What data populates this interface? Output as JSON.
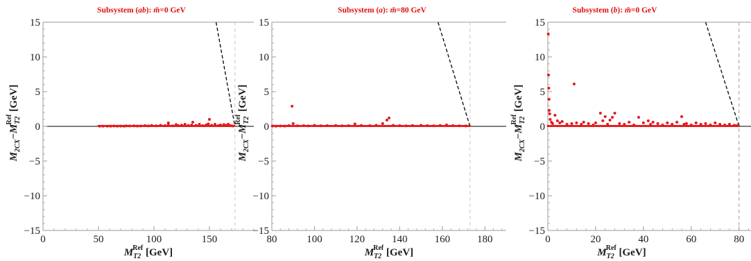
{
  "chart_data": [
    {
      "type": "scatter",
      "title": "Subsystem (ab): m̃=0 GeV",
      "title_parts": [
        "Subsystem (",
        "ab",
        "): ",
        "m̃",
        "=0 GeV"
      ],
      "xlabel_parts": [
        "M",
        "T2",
        "Ref",
        "[GeV]"
      ],
      "ylabel_parts": [
        "M",
        "2CX",
        "−",
        "M",
        "T2",
        "Ref",
        "[GeV]"
      ],
      "xlim": [
        0,
        190
      ],
      "ylim": [
        -15,
        15
      ],
      "xticks": [
        0,
        50,
        100,
        150
      ],
      "yticks": [
        -15,
        -10,
        -5,
        0,
        5,
        10,
        15
      ],
      "ytick_labels": [
        "−15",
        "−10",
        "−5",
        "0",
        "5",
        "10",
        "15"
      ],
      "endpoint": 173,
      "diagonal": [
        [
          156,
          15
        ],
        [
          173,
          0
        ]
      ],
      "series": [
        {
          "color": "#e31a1c",
          "x": [
            51,
            54,
            58,
            61,
            64,
            67,
            70,
            73,
            75,
            78,
            82,
            85,
            88,
            92,
            95,
            98,
            102,
            106,
            110,
            113,
            113,
            117,
            120,
            122,
            125,
            128,
            131,
            134,
            135,
            138,
            141,
            144,
            147,
            149,
            150,
            152,
            155,
            158,
            160,
            163,
            165,
            167,
            169,
            171
          ],
          "y": [
            0.02,
            0.02,
            0.03,
            0.02,
            0.05,
            0.03,
            0.04,
            0.02,
            0.06,
            0.05,
            0.08,
            0.04,
            0.05,
            0.1,
            0.06,
            0.12,
            0.07,
            0.15,
            0.1,
            0.5,
            0.2,
            0.08,
            0.25,
            0.1,
            0.18,
            0.3,
            0.12,
            0.2,
            0.6,
            0.15,
            0.3,
            0.1,
            0.2,
            0.35,
            1.0,
            0.15,
            0.3,
            0.1,
            0.2,
            0.25,
            0.15,
            0.3,
            0.1,
            0.05
          ]
        }
      ]
    },
    {
      "type": "scatter",
      "title": "Subsystem (a): m̃=80 GeV",
      "title_parts": [
        "Subsystem (",
        "a",
        "): ",
        "m̃",
        "=80 GeV"
      ],
      "xlabel_parts": [
        "M",
        "T2",
        "Ref",
        "[GeV]"
      ],
      "ylabel_parts": [
        "M",
        "2CX",
        "−",
        "M",
        "T2",
        "Ref",
        "[GeV]"
      ],
      "xlim": [
        80,
        190
      ],
      "ylim": [
        -15,
        15
      ],
      "xticks": [
        80,
        100,
        120,
        140,
        160,
        180
      ],
      "yticks": [
        -15,
        -10,
        -5,
        0,
        5,
        10,
        15
      ],
      "ytick_labels": [
        "−15",
        "−10",
        "−5",
        "0",
        "5",
        "10",
        "15"
      ],
      "endpoint": 173,
      "diagonal": [
        [
          158,
          15
        ],
        [
          173,
          0
        ]
      ],
      "series": [
        {
          "color": "#e31a1c",
          "x": [
            80.5,
            82,
            84,
            86,
            88,
            89.5,
            90,
            92,
            95,
            97,
            100,
            103,
            106,
            110,
            113,
            116,
            119,
            122,
            126,
            129,
            132,
            134,
            135,
            137,
            140,
            143,
            146,
            150,
            153,
            156,
            159,
            162,
            165,
            168,
            171
          ],
          "y": [
            0.05,
            0.03,
            0.05,
            0.04,
            0.1,
            2.9,
            0.4,
            0.08,
            0.1,
            0.06,
            0.15,
            0.08,
            0.1,
            0.12,
            0.08,
            0.1,
            0.35,
            0.12,
            0.1,
            0.15,
            0.4,
            0.9,
            1.2,
            0.15,
            0.1,
            0.08,
            0.12,
            0.15,
            0.1,
            0.08,
            0.12,
            0.2,
            0.1,
            0.08,
            0.06
          ]
        }
      ]
    },
    {
      "type": "scatter",
      "title": "Subsystem (b): m̃=0 GeV",
      "title_parts": [
        "Subsystem (",
        "b",
        "): ",
        "m̃",
        "=0 GeV"
      ],
      "xlabel_parts": [
        "M",
        "T2",
        "Ref",
        "[GeV]"
      ],
      "ylabel_parts": [
        "M",
        "2CX",
        "−",
        "M",
        "T2",
        "Ref",
        "[GeV]"
      ],
      "xlim": [
        0,
        85
      ],
      "ylim": [
        -15,
        15
      ],
      "xticks": [
        0,
        20,
        40,
        60,
        80
      ],
      "yticks": [
        -15,
        -10,
        -5,
        0,
        5,
        10,
        15
      ],
      "ytick_labels": [
        "−15",
        "−10",
        "−5",
        "0",
        "5",
        "10",
        "15"
      ],
      "endpoint": 80,
      "diagonal": [
        [
          66,
          15
        ],
        [
          80,
          0
        ]
      ],
      "series": [
        {
          "color": "#e31a1c",
          "x": [
            0.2,
            0.3,
            0.4,
            0.5,
            0.6,
            0.8,
            1.0,
            1.5,
            2,
            3,
            4,
            5,
            6,
            8,
            10,
            11,
            12,
            14,
            15,
            17,
            19,
            20,
            22,
            23,
            24,
            25,
            26,
            27,
            28,
            30,
            32,
            34,
            36,
            38,
            40,
            42,
            43,
            44,
            46,
            48,
            50,
            52,
            54,
            56,
            57,
            58,
            60,
            62,
            64,
            66,
            68,
            70,
            72,
            74,
            76,
            78,
            79
          ],
          "y": [
            13.3,
            7.4,
            5.5,
            3.9,
            2.3,
            1.8,
            1.0,
            0.6,
            0.4,
            1.6,
            0.8,
            0.5,
            0.7,
            0.3,
            0.4,
            6.1,
            0.5,
            0.3,
            0.6,
            0.4,
            0.2,
            0.5,
            1.9,
            0.8,
            1.4,
            0.3,
            0.9,
            1.3,
            1.9,
            0.4,
            0.3,
            0.6,
            0.2,
            1.3,
            0.5,
            0.8,
            0.3,
            0.6,
            0.4,
            0.2,
            0.5,
            0.3,
            0.6,
            1.4,
            0.3,
            0.4,
            0.2,
            0.5,
            0.3,
            0.4,
            0.2,
            0.5,
            0.3,
            0.2,
            0.3,
            0.15,
            0.1
          ]
        }
      ]
    }
  ]
}
